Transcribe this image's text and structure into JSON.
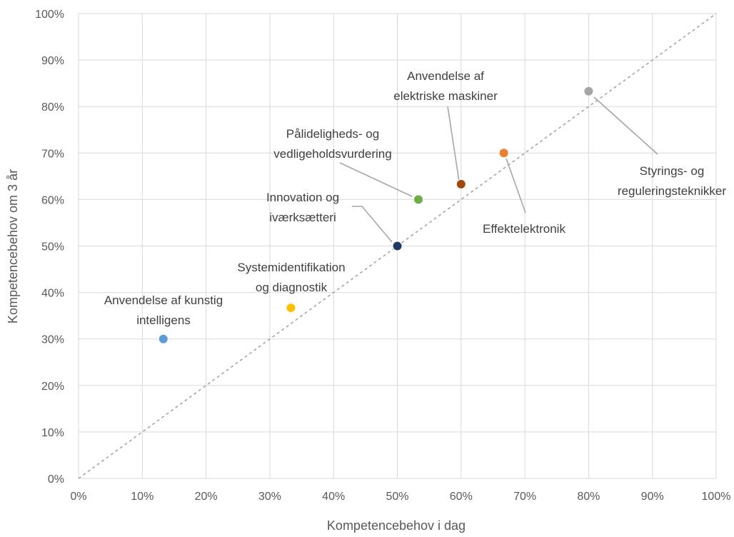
{
  "chart_data": {
    "type": "scatter",
    "title": "",
    "xlabel": "Kompetencebehov i dag",
    "ylabel": "Kompetencebehov om 3 år",
    "xlim": [
      0,
      100
    ],
    "ylim": [
      0,
      100
    ],
    "x_ticks": [
      "0%",
      "10%",
      "20%",
      "30%",
      "40%",
      "50%",
      "60%",
      "70%",
      "80%",
      "90%",
      "100%"
    ],
    "y_ticks": [
      "0%",
      "10%",
      "20%",
      "30%",
      "40%",
      "50%",
      "60%",
      "70%",
      "80%",
      "90%",
      "100%"
    ],
    "grid": true,
    "reference_line": {
      "style": "dashed",
      "from": [
        0,
        0
      ],
      "to": [
        100,
        100
      ],
      "color": "#a6a6a6"
    },
    "points": [
      {
        "label": [
          "Anvendelse af kunstig",
          "intelligens"
        ],
        "x": 13.3,
        "y": 30.0,
        "color": "#5b9bd5"
      },
      {
        "label": [
          "Systemidentifikation",
          "og diagnostik"
        ],
        "x": 33.3,
        "y": 36.7,
        "color": "#ffc000"
      },
      {
        "label": [
          "Innovation og",
          "iværksætteri"
        ],
        "x": 50.0,
        "y": 50.0,
        "color": "#203864"
      },
      {
        "label": [
          "Pålideligheds- og",
          "vedligeholdsvurdering"
        ],
        "x": 53.3,
        "y": 60.0,
        "color": "#70ad47"
      },
      {
        "label": [
          "Anvendelse af",
          "elektriske maskiner"
        ],
        "x": 60.0,
        "y": 63.3,
        "color": "#9e480e"
      },
      {
        "label": [
          "Effektelektronik"
        ],
        "x": 66.7,
        "y": 70.0,
        "color": "#ed7d31"
      },
      {
        "label": [
          "Styrings- og",
          "reguleringsteknikker"
        ],
        "x": 80.0,
        "y": 83.3,
        "color": "#a5a5a5"
      }
    ]
  }
}
